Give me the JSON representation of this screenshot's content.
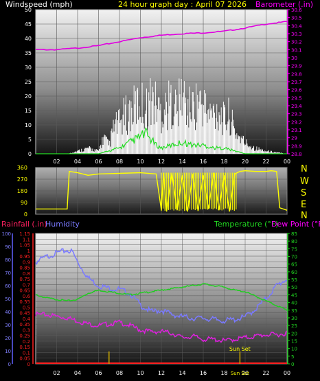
{
  "header": {
    "windspeed_label": "Windspeed (mph)",
    "title": "24 hour graph day : April 07 2026",
    "barometer_label": "Barometer (.in)"
  },
  "middle": {
    "compass": [
      "N",
      "W",
      "S",
      "E",
      "N"
    ]
  },
  "bottom": {
    "rainfall_label": "Rainfall (.in)",
    "humidity_label": "Humidity",
    "temperature_label": "Temperature (°F)",
    "dewpoint_label": "Dew Point (°F)",
    "sunset_label": "Sun Set",
    "sunrise_label": "Sunrise"
  },
  "colors": {
    "wind": "#ffffff",
    "wind_avg": "#22dd22",
    "barometer": "#e000e0",
    "direction": "#ffff00",
    "rain": "#ff2020",
    "humidity": "#7a7aff",
    "temperature": "#22cc22",
    "dewpoint": "#e020e0",
    "marker": "#ccaa00"
  },
  "chart_data": [
    {
      "type": "line",
      "name": "wind-barometer",
      "x_ticks": [
        "02",
        "04",
        "06",
        "08",
        "10",
        "12",
        "14",
        "16",
        "18",
        "20",
        "22",
        "00"
      ],
      "y_left_ticks": [
        0,
        5,
        10,
        15,
        20,
        25,
        30,
        35,
        40,
        45,
        50
      ],
      "y_left_range": [
        0,
        50
      ],
      "y_right_ticks": [
        "28.8",
        "28.9",
        "29",
        "29.1",
        "29.2",
        "29.3",
        "29.4",
        "29.5",
        "29.6",
        "29.7",
        "29.8",
        "29.9",
        "30",
        "30.1",
        "30.2",
        "30.3",
        "30.4",
        "30.5",
        "30.6"
      ],
      "y_right_range": [
        28.8,
        30.6
      ],
      "x_range": [
        0,
        24
      ],
      "series": [
        {
          "key": "barometer",
          "axis": "right",
          "x": [
            0,
            2,
            4,
            6,
            8,
            10,
            12,
            14,
            16,
            18,
            20,
            22,
            24
          ],
          "y": [
            30.1,
            30.1,
            30.12,
            30.15,
            30.2,
            30.25,
            30.28,
            30.3,
            30.31,
            30.33,
            30.37,
            30.42,
            30.45
          ]
        },
        {
          "key": "wind_gust",
          "axis": "left",
          "x": [
            0,
            2,
            3,
            4,
            5,
            6,
            6.5,
            7,
            7.5,
            8,
            8.5,
            9,
            9.5,
            10,
            10.5,
            11,
            11.5,
            12,
            12.5,
            13,
            13.5,
            14,
            14.5,
            15,
            15.5,
            16,
            16.5,
            17,
            17.5,
            18,
            18.5,
            19,
            19.5,
            20,
            21,
            22,
            24
          ],
          "y": [
            0,
            0,
            0,
            1,
            2,
            1,
            6,
            3,
            10,
            11,
            14,
            15,
            17,
            19,
            16,
            20,
            18,
            15,
            17,
            19,
            16,
            22,
            16,
            17,
            19,
            18,
            14,
            15,
            16,
            12,
            14,
            8,
            6,
            4,
            2,
            1,
            0
          ]
        },
        {
          "key": "wind_avg",
          "axis": "left",
          "x": [
            0,
            6,
            7,
            8,
            9,
            10,
            10.5,
            11,
            11.5,
            12,
            13,
            14,
            15,
            16,
            17,
            18,
            19,
            20,
            22,
            24
          ],
          "y": [
            0,
            0,
            1,
            2,
            4,
            6,
            7,
            5,
            3,
            2,
            3,
            4,
            3,
            3,
            2,
            2,
            1,
            0,
            0,
            0
          ]
        }
      ]
    },
    {
      "type": "line",
      "name": "wind-direction",
      "y_ticks": [
        0,
        90,
        180,
        270,
        360
      ],
      "y_range": [
        0,
        360
      ],
      "x_range": [
        0,
        24
      ],
      "series": [
        {
          "key": "direction",
          "x": [
            0,
            2.5,
            3.0,
            3.2,
            4.0,
            5.0,
            6.0,
            8.0,
            10.0,
            11.5,
            12.0,
            12.2,
            12.5,
            13.0,
            13.5,
            14.0,
            14.5,
            15.0,
            15.5,
            16.0,
            16.5,
            17.0,
            17.5,
            18.0,
            18.5,
            19.0,
            19.5,
            20.0,
            21.0,
            22.0,
            22.5,
            23.0,
            23.3,
            24.0
          ],
          "y": [
            40,
            40,
            40,
            330,
            320,
            300,
            310,
            315,
            320,
            310,
            30,
            320,
            20,
            320,
            30,
            300,
            20,
            310,
            25,
            300,
            40,
            320,
            30,
            300,
            20,
            310,
            330,
            335,
            330,
            330,
            335,
            330,
            50,
            30
          ]
        }
      ]
    },
    {
      "type": "line",
      "name": "temp-humidity-rain",
      "x_ticks": [
        "02",
        "04",
        "06",
        "08",
        "10",
        "12",
        "14",
        "16",
        "18",
        "20",
        "22",
        "00"
      ],
      "humidity_ticks": [
        0,
        10,
        20,
        30,
        40,
        50,
        60,
        70,
        80,
        90,
        100
      ],
      "humidity_range": [
        0,
        100
      ],
      "rain_ticks": [
        "0",
        "0.05",
        "0.1",
        "0.15",
        "0.2",
        "0.25",
        "0.3",
        "0.35",
        "0.4",
        "0.45",
        "0.5",
        "0.55",
        "0.6",
        "0.65",
        "0.7",
        "0.75",
        "0.8",
        "0.85",
        "0.9",
        "0.95",
        "1",
        "1.05",
        "1.1",
        "1.15"
      ],
      "rain_range": [
        0,
        1.15
      ],
      "temp_ticks": [
        0,
        5,
        10,
        15,
        20,
        25,
        30,
        35,
        40,
        45,
        50,
        55,
        60,
        65,
        70,
        75,
        80,
        85
      ],
      "temp_range": [
        0,
        85
      ],
      "x_range": [
        0,
        24
      ],
      "series": [
        {
          "key": "humidity",
          "axis": "humidity",
          "x": [
            0,
            1,
            2,
            2.5,
            3,
            3.5,
            4,
            5,
            6,
            7,
            8,
            9,
            10,
            11,
            12,
            13,
            14,
            15,
            16,
            17,
            18,
            19,
            20,
            21,
            22,
            23,
            24
          ],
          "y": [
            78,
            82,
            85,
            86,
            87,
            86,
            78,
            66,
            60,
            58,
            57,
            54,
            45,
            40,
            41,
            38,
            36,
            35,
            35,
            34,
            33,
            34,
            36,
            42,
            50,
            60,
            65
          ]
        },
        {
          "key": "temperature",
          "axis": "temp",
          "x": [
            0,
            1,
            2,
            3,
            4,
            5,
            6,
            7,
            8,
            9,
            10,
            11,
            12,
            13,
            14,
            15,
            16,
            17,
            18,
            19,
            20,
            21,
            22,
            23,
            24
          ],
          "y": [
            45,
            43,
            42,
            41,
            42,
            46,
            48,
            47,
            46,
            45,
            46,
            47,
            48,
            49,
            50,
            51,
            52,
            51,
            50,
            48,
            47,
            44,
            41,
            38,
            35
          ]
        },
        {
          "key": "dewpoint",
          "axis": "temp",
          "x": [
            0,
            1,
            2,
            3,
            4,
            5,
            6,
            7,
            8,
            9,
            10,
            11,
            12,
            13,
            14,
            15,
            16,
            17,
            18,
            19,
            20,
            21,
            22,
            23,
            24
          ],
          "y": [
            32,
            32,
            31,
            30,
            28,
            26,
            25,
            26,
            27,
            25,
            22,
            21,
            21,
            20,
            17,
            18,
            16,
            16,
            15,
            16,
            17,
            18,
            19,
            19,
            20
          ]
        },
        {
          "key": "rainfall",
          "axis": "rain",
          "x": [
            0,
            24
          ],
          "y": [
            0,
            0
          ]
        }
      ],
      "markers": [
        {
          "key": "sunrise",
          "x": 7.0
        },
        {
          "key": "sunset",
          "x": 19.5
        }
      ]
    }
  ]
}
